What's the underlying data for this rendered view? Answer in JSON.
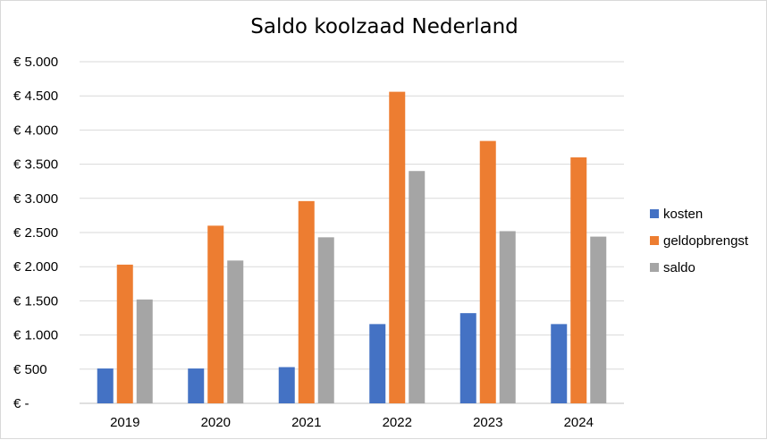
{
  "chart_data": {
    "type": "bar",
    "title": "Saldo koolzaad Nederland",
    "xlabel": "",
    "ylabel": "",
    "categories": [
      "2019",
      "2020",
      "2021",
      "2022",
      "2023",
      "2024"
    ],
    "series": [
      {
        "name": "kosten",
        "color": "#4472c4",
        "values": [
          510,
          510,
          530,
          1160,
          1320,
          1160
        ]
      },
      {
        "name": "geldopbrengst",
        "color": "#ed7d31",
        "values": [
          2030,
          2600,
          2960,
          4560,
          3840,
          3600
        ]
      },
      {
        "name": "saldo",
        "color": "#a5a5a5",
        "values": [
          1520,
          2090,
          2430,
          3400,
          2520,
          2440
        ]
      }
    ],
    "ylim": [
      0,
      5000
    ],
    "yticks": [
      0,
      500,
      1000,
      1500,
      2000,
      2500,
      3000,
      3500,
      4000,
      4500,
      5000
    ],
    "ytick_labels": [
      "€ -",
      "€ 500",
      "€ 1.000",
      "€ 1.500",
      "€ 2.000",
      "€ 2.500",
      "€ 3.000",
      "€ 3.500",
      "€ 4.000",
      "€ 4.500",
      "€ 5.000"
    ],
    "grid": true,
    "legend_position": "right"
  }
}
